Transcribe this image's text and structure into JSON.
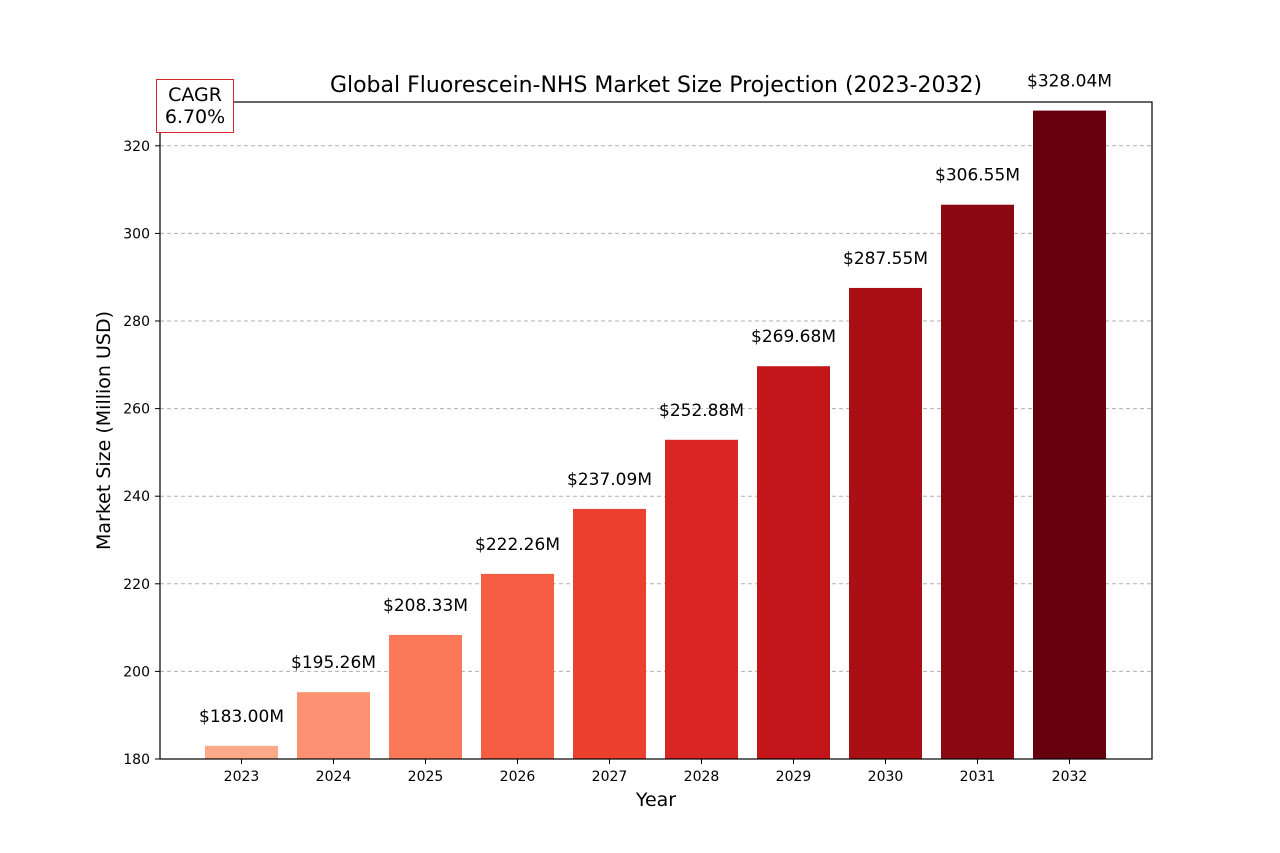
{
  "chart_data": {
    "type": "bar",
    "title": "Global Fluorescein-NHS Market Size Projection (2023-2032)",
    "xlabel": "Year",
    "ylabel": "Market Size (Million USD)",
    "categories": [
      "2023",
      "2024",
      "2025",
      "2026",
      "2027",
      "2028",
      "2029",
      "2030",
      "2031",
      "2032"
    ],
    "values": [
      183.0,
      195.26,
      208.33,
      222.26,
      237.09,
      252.88,
      269.68,
      287.55,
      306.55,
      328.04
    ],
    "data_labels": [
      "$183.00M",
      "$195.26M",
      "$208.33M",
      "$222.26M",
      "$237.09M",
      "$252.88M",
      "$269.68M",
      "$287.55M",
      "$306.55M",
      "$328.04M"
    ],
    "bar_colors": [
      "#fca98a",
      "#fc9272",
      "#fb7858",
      "#f75d43",
      "#ec402f",
      "#d92623",
      "#c3161b",
      "#aa0f15",
      "#8a0812",
      "#67000d"
    ],
    "ylim": [
      180,
      330
    ],
    "yticks": [
      180,
      200,
      220,
      240,
      260,
      280,
      300,
      320
    ],
    "grid": "y-dashed",
    "legend": "none"
  },
  "annotation": {
    "line1": "CAGR",
    "line2": "6.70%",
    "border_color": "#d62728"
  }
}
